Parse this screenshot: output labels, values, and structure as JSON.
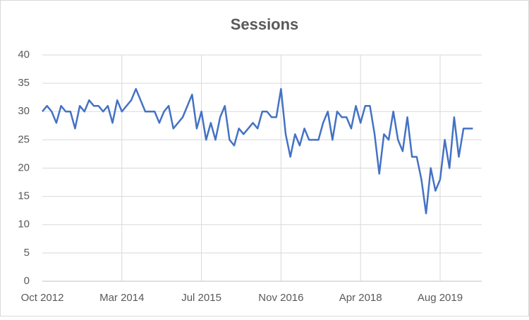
{
  "chart_data": {
    "type": "line",
    "title": "Sessions",
    "categories": [
      "Oct 2012",
      null,
      null,
      null,
      null,
      null,
      null,
      null,
      null,
      null,
      null,
      null,
      null,
      null,
      null,
      null,
      null,
      "Mar 2014",
      null,
      null,
      null,
      null,
      null,
      null,
      null,
      null,
      null,
      null,
      null,
      null,
      null,
      null,
      null,
      null,
      "Jul 2015",
      null,
      null,
      null,
      null,
      null,
      null,
      null,
      null,
      null,
      null,
      null,
      null,
      null,
      null,
      null,
      null,
      "Nov 2016",
      null,
      null,
      null,
      null,
      null,
      null,
      null,
      null,
      null,
      null,
      null,
      null,
      null,
      null,
      null,
      null,
      "Apr 2018",
      null,
      null,
      null,
      null,
      null,
      null,
      null,
      null,
      null,
      null,
      null,
      null,
      null,
      null,
      null,
      null,
      "Aug 2019",
      null,
      null,
      null,
      null,
      null,
      null,
      null
    ],
    "values": [
      30,
      31,
      30,
      28,
      31,
      30,
      30,
      27,
      31,
      30,
      32,
      31,
      31,
      30,
      31,
      28,
      32,
      30,
      31,
      32,
      34,
      32,
      30,
      30,
      30,
      28,
      30,
      31,
      27,
      28,
      29,
      31,
      33,
      27,
      30,
      25,
      28,
      25,
      29,
      31,
      25,
      24,
      27,
      26,
      27,
      28,
      27,
      30,
      30,
      29,
      29,
      34,
      26,
      22,
      26,
      24,
      27,
      25,
      25,
      25,
      28,
      30,
      25,
      30,
      29,
      29,
      27,
      31,
      28,
      31,
      31,
      26,
      19,
      26,
      25,
      30,
      25,
      23,
      29,
      22,
      22,
      18,
      12,
      20,
      16,
      18,
      25,
      20,
      29,
      22,
      27,
      27,
      27
    ],
    "color": "#4472c4",
    "ylim": [
      0,
      40
    ],
    "yticks": [
      0,
      5,
      10,
      15,
      20,
      25,
      30,
      35,
      40
    ],
    "grid": true
  }
}
